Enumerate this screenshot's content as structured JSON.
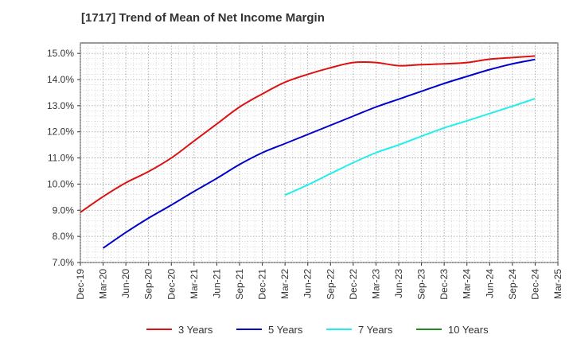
{
  "chart_data": {
    "type": "line",
    "title": "[1717]  Trend of Mean of Net Income Margin",
    "xlabel": "",
    "ylabel": "",
    "x_ticks": [
      "Dec-19",
      "Mar-20",
      "Jun-20",
      "Sep-20",
      "Dec-20",
      "Mar-21",
      "Jun-21",
      "Sep-21",
      "Dec-21",
      "Mar-22",
      "Jun-22",
      "Sep-22",
      "Dec-22",
      "Mar-23",
      "Jun-23",
      "Sep-23",
      "Dec-23",
      "Mar-24",
      "Jun-24",
      "Sep-24",
      "Dec-24",
      "Mar-25"
    ],
    "y_ticks": [
      "7.0%",
      "8.0%",
      "9.0%",
      "10.0%",
      "11.0%",
      "12.0%",
      "13.0%",
      "14.0%",
      "15.0%"
    ],
    "ylim": [
      7.0,
      15.4
    ],
    "grid": true,
    "legend_position": "bottom",
    "series": [
      {
        "name": "3 Years",
        "color": "#dd1111",
        "x": [
          "Dec-19",
          "Mar-20",
          "Jun-20",
          "Sep-20",
          "Dec-20",
          "Mar-21",
          "Jun-21",
          "Sep-21",
          "Dec-21",
          "Mar-22",
          "Jun-22",
          "Sep-22",
          "Dec-22",
          "Mar-23",
          "Jun-23",
          "Sep-23",
          "Dec-23",
          "Mar-24",
          "Jun-24",
          "Sep-24",
          "Dec-24"
        ],
        "values": [
          8.92,
          9.52,
          10.05,
          10.48,
          11.0,
          11.65,
          12.3,
          12.95,
          13.45,
          13.9,
          14.2,
          14.45,
          14.65,
          14.65,
          14.53,
          14.57,
          14.6,
          14.65,
          14.78,
          14.84,
          14.9
        ]
      },
      {
        "name": "5 Years",
        "color": "#0000cc",
        "x": [
          "Mar-20",
          "Jun-20",
          "Sep-20",
          "Dec-20",
          "Mar-21",
          "Jun-21",
          "Sep-21",
          "Dec-21",
          "Mar-22",
          "Jun-22",
          "Sep-22",
          "Dec-22",
          "Mar-23",
          "Jun-23",
          "Sep-23",
          "Dec-23",
          "Mar-24",
          "Jun-24",
          "Sep-24",
          "Dec-24"
        ],
        "values": [
          7.55,
          8.15,
          8.7,
          9.2,
          9.72,
          10.22,
          10.75,
          11.2,
          11.55,
          11.9,
          12.25,
          12.6,
          12.95,
          13.25,
          13.55,
          13.85,
          14.12,
          14.38,
          14.6,
          14.77
        ]
      },
      {
        "name": "7 Years",
        "color": "#22eeee",
        "x": [
          "Mar-22",
          "Jun-22",
          "Sep-22",
          "Dec-22",
          "Mar-23",
          "Jun-23",
          "Sep-23",
          "Dec-23",
          "Mar-24",
          "Jun-24",
          "Sep-24",
          "Dec-24"
        ],
        "values": [
          9.58,
          9.97,
          10.4,
          10.82,
          11.2,
          11.5,
          11.83,
          12.15,
          12.42,
          12.7,
          12.98,
          13.27
        ]
      },
      {
        "name": "10 Years",
        "color": "#228822",
        "x": [],
        "values": []
      }
    ]
  }
}
